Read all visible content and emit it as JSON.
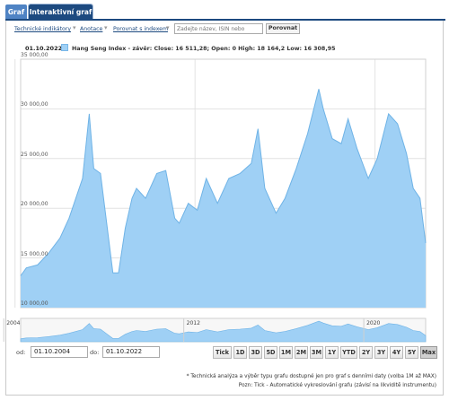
{
  "tabs": [
    {
      "label": "Graf"
    },
    {
      "label": "Interaktivní graf"
    }
  ],
  "toolbar": {
    "technical_label": "Technické indikátory",
    "analysis_label": "Anotace",
    "compare_index_label": "Porovnat s indexem",
    "search_placeholder": "Zadejte název, ISIN nebo",
    "compare_button": "Porovnat"
  },
  "chart": {
    "date": "01.10.2022",
    "legend": "Hang Seng Index - závěr: Close: 16 511,28; Open: 0 High: 18 164,2 Low: 16 308,95",
    "series_color": "#9fd0f5",
    "line_color": "#6fb3e6",
    "y_ticks": [
      "35 000,00",
      "30 000,00",
      "25 000,00",
      "20 000,00",
      "15 000,00",
      "10 000,00"
    ]
  },
  "chart_data": {
    "type": "area",
    "ylim": [
      10000,
      35000
    ],
    "yticks": [
      10000,
      15000,
      20000,
      25000,
      30000,
      35000
    ],
    "x": [
      2004.75,
      2005.0,
      2005.5,
      2006.0,
      2006.5,
      2006.9,
      2007.2,
      2007.5,
      2007.8,
      2008.0,
      2008.3,
      2008.6,
      2008.85,
      2009.1,
      2009.4,
      2009.7,
      2009.9,
      2010.3,
      2010.8,
      2011.2,
      2011.6,
      2011.8,
      2012.2,
      2012.6,
      2013.0,
      2013.5,
      2014.0,
      2014.5,
      2015.0,
      2015.3,
      2015.6,
      2016.1,
      2016.5,
      2017.0,
      2017.5,
      2018.0,
      2018.2,
      2018.6,
      2019.0,
      2019.3,
      2019.7,
      2020.2,
      2020.6,
      2021.1,
      2021.5,
      2021.9,
      2022.2,
      2022.5,
      2022.75
    ],
    "y": [
      13200,
      14000,
      14300,
      15500,
      17000,
      19000,
      21000,
      23000,
      29500,
      24000,
      23500,
      18000,
      13500,
      13500,
      18000,
      21000,
      22000,
      21000,
      23500,
      23800,
      19000,
      18500,
      20500,
      19800,
      23000,
      20500,
      23000,
      23500,
      24500,
      28000,
      22000,
      19500,
      21000,
      24000,
      27500,
      32000,
      30000,
      27000,
      26500,
      29000,
      26000,
      23000,
      25000,
      29500,
      28500,
      25500,
      22000,
      21000,
      16500
    ],
    "series": [
      {
        "name": "Hang Seng Index - závěr",
        "color": "#9fd0f5"
      }
    ]
  },
  "periods": {
    "labels": [
      "2004",
      "2012",
      "2020"
    ],
    "values": [
      2004,
      2012,
      2020
    ]
  },
  "range": {
    "from_label": "od:",
    "from_value": "01.10.2004",
    "to_label": "do:",
    "to_value": "01.10.2022",
    "buttons": [
      "Tick",
      "1D",
      "3D",
      "5D",
      "1M",
      "2M",
      "3M",
      "1Y",
      "YTD",
      "2Y",
      "3Y",
      "4Y",
      "5Y",
      "Max"
    ],
    "active": "Max"
  },
  "notes": {
    "line1": "* Technická analýza a výběr typu grafu dostupné jen pro graf s denními daty (volba 1M až MAX)",
    "line2": "Pozn: Tick - Automatické vykreslování grafu (závisí na likviditě instrumentu)"
  }
}
